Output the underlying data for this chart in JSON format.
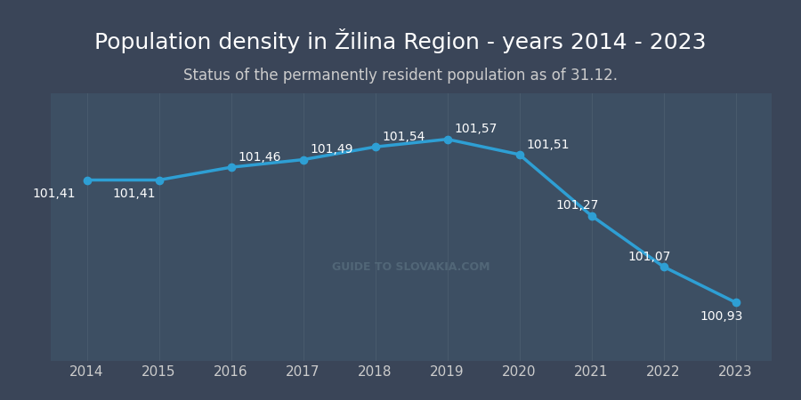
{
  "title": "Population density in Žilina Region - years 2014 - 2023",
  "subtitle": "Status of the permanently resident population as of 31.12.",
  "years": [
    2014,
    2015,
    2016,
    2017,
    2018,
    2019,
    2020,
    2021,
    2022,
    2023
  ],
  "values": [
    101.41,
    101.41,
    101.46,
    101.49,
    101.54,
    101.57,
    101.51,
    101.27,
    101.07,
    100.93
  ],
  "labels": [
    "101,41",
    "101,41",
    "101,46",
    "101,49",
    "101,54",
    "101,57",
    "101,51",
    "101,27",
    "101,07",
    "100,93"
  ],
  "label_ha": [
    "right",
    "right",
    "left",
    "left",
    "left",
    "left",
    "left",
    "right",
    "right",
    "right"
  ],
  "label_va": [
    "top",
    "top",
    "bottom",
    "bottom",
    "bottom",
    "bottom",
    "bottom",
    "bottom",
    "bottom",
    "top"
  ],
  "label_x_offset": [
    -0.15,
    -0.05,
    0.1,
    0.1,
    0.1,
    0.1,
    0.1,
    0.1,
    0.1,
    0.1
  ],
  "label_y_offset": [
    -0.03,
    -0.03,
    0.015,
    0.015,
    0.015,
    0.015,
    0.015,
    0.015,
    0.015,
    -0.03
  ],
  "line_color": "#2e9fd4",
  "marker_color": "#2e9fd4",
  "bg_color": "#3a4558",
  "plot_bg_color": "#3d4f63",
  "grid_color": "#4e6070",
  "title_color": "#ffffff",
  "subtitle_color": "#cccccc",
  "label_color": "#ffffff",
  "tick_color": "#cccccc",
  "watermark_text": "GUIDE TO SLOVAKIA.COM",
  "watermark_color": "#5a7080",
  "ylim": [
    100.7,
    101.75
  ],
  "xlim": [
    2013.5,
    2023.5
  ],
  "title_fontsize": 18,
  "subtitle_fontsize": 12,
  "label_fontsize": 10,
  "tick_fontsize": 11,
  "watermark_fontsize": 9
}
